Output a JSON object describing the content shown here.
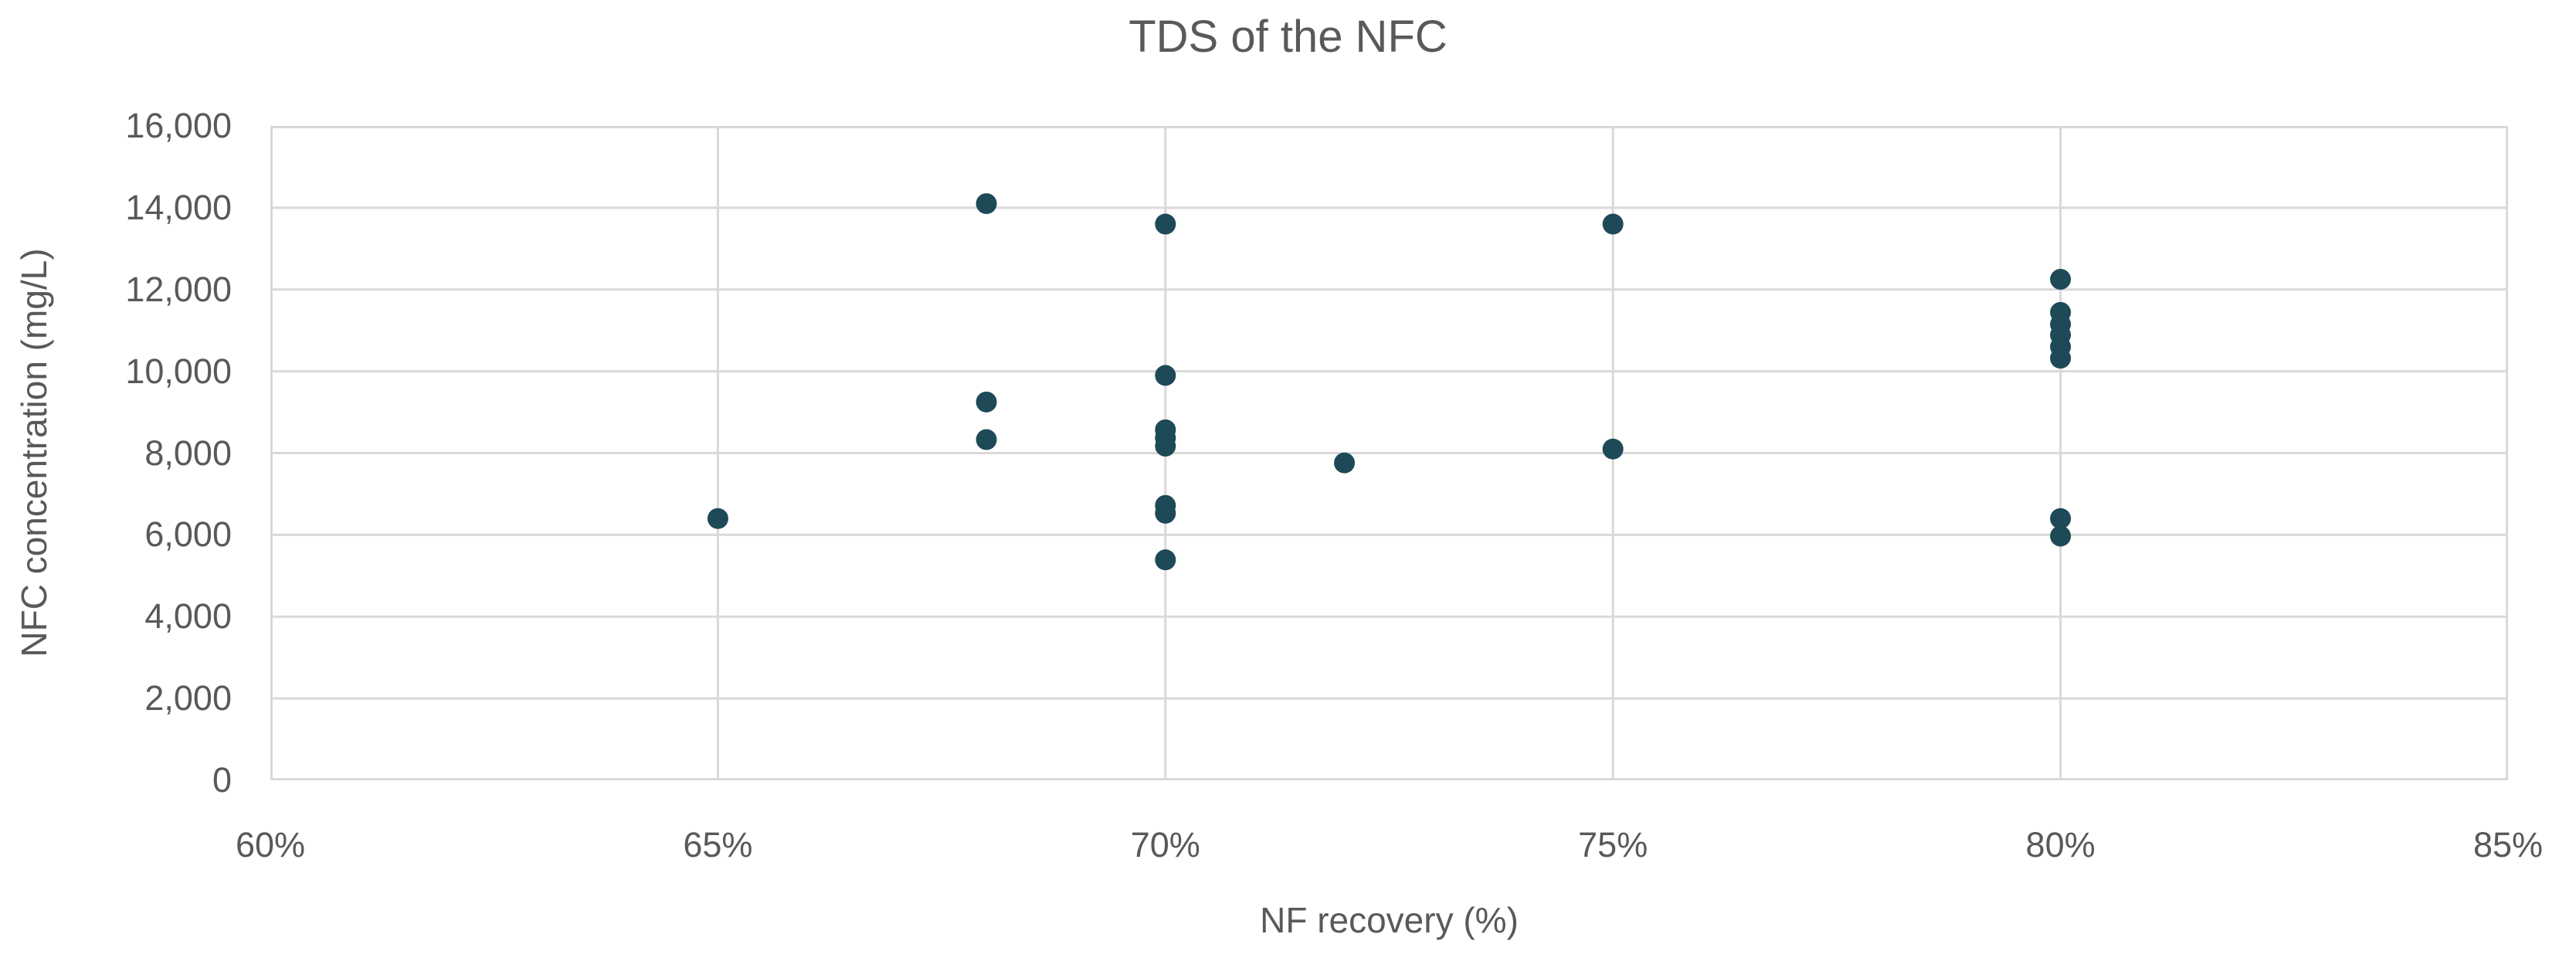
{
  "colors": {
    "point": "#1e4a58",
    "grid": "#d9d9d9",
    "text": "#595959",
    "background": "#ffffff"
  },
  "chart_data": {
    "type": "scatter",
    "title": "TDS of the NFC",
    "xlabel": "NF recovery (%)",
    "ylabel": "NFC concentration (mg/L)",
    "xlim": [
      60,
      85
    ],
    "ylim": [
      0,
      16000
    ],
    "grid": "both",
    "legend": "none",
    "x_ticks": [
      {
        "value": 60,
        "label": "60%"
      },
      {
        "value": 65,
        "label": "65%"
      },
      {
        "value": 70,
        "label": "70%"
      },
      {
        "value": 75,
        "label": "75%"
      },
      {
        "value": 80,
        "label": "80%"
      },
      {
        "value": 85,
        "label": "85%"
      }
    ],
    "y_ticks": [
      {
        "value": 0,
        "label": "0"
      },
      {
        "value": 2000,
        "label": "2,000"
      },
      {
        "value": 4000,
        "label": "4,000"
      },
      {
        "value": 6000,
        "label": "6,000"
      },
      {
        "value": 8000,
        "label": "8,000"
      },
      {
        "value": 10000,
        "label": "10,000"
      },
      {
        "value": 12000,
        "label": "12,000"
      },
      {
        "value": 14000,
        "label": "14,000"
      },
      {
        "value": 16000,
        "label": "16,000"
      }
    ],
    "series": [
      {
        "name": "TDS of the NFC",
        "color": "#1e4a58",
        "points": [
          {
            "x": 65,
            "y": 6400
          },
          {
            "x": 68,
            "y": 14100
          },
          {
            "x": 68,
            "y": 9250
          },
          {
            "x": 68,
            "y": 8330
          },
          {
            "x": 70,
            "y": 13600
          },
          {
            "x": 70,
            "y": 9900
          },
          {
            "x": 70,
            "y": 8570
          },
          {
            "x": 70,
            "y": 8370
          },
          {
            "x": 70,
            "y": 8170
          },
          {
            "x": 70,
            "y": 6720
          },
          {
            "x": 70,
            "y": 6530
          },
          {
            "x": 70,
            "y": 5390
          },
          {
            "x": 72,
            "y": 7760
          },
          {
            "x": 75,
            "y": 13600
          },
          {
            "x": 75,
            "y": 8100
          },
          {
            "x": 80,
            "y": 12250
          },
          {
            "x": 80,
            "y": 11440
          },
          {
            "x": 80,
            "y": 11150
          },
          {
            "x": 80,
            "y": 10890
          },
          {
            "x": 80,
            "y": 10600
          },
          {
            "x": 80,
            "y": 10320
          },
          {
            "x": 80,
            "y": 6400
          },
          {
            "x": 80,
            "y": 5970
          }
        ]
      }
    ]
  }
}
